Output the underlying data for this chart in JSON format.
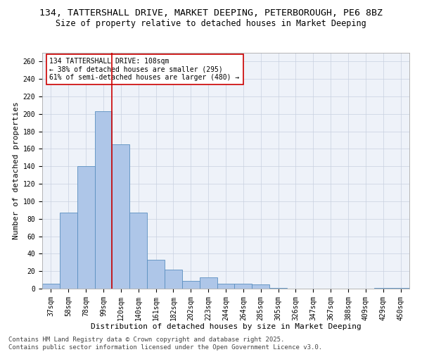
{
  "title1": "134, TATTERSHALL DRIVE, MARKET DEEPING, PETERBOROUGH, PE6 8BZ",
  "title2": "Size of property relative to detached houses in Market Deeping",
  "xlabel": "Distribution of detached houses by size in Market Deeping",
  "ylabel": "Number of detached properties",
  "categories": [
    "37sqm",
    "58sqm",
    "78sqm",
    "99sqm",
    "120sqm",
    "140sqm",
    "161sqm",
    "182sqm",
    "202sqm",
    "223sqm",
    "244sqm",
    "264sqm",
    "285sqm",
    "305sqm",
    "326sqm",
    "347sqm",
    "367sqm",
    "388sqm",
    "409sqm",
    "429sqm",
    "450sqm"
  ],
  "values": [
    6,
    87,
    140,
    203,
    165,
    87,
    33,
    22,
    9,
    13,
    6,
    6,
    5,
    1,
    0,
    0,
    0,
    0,
    0,
    1,
    1
  ],
  "bar_color": "#aec6e8",
  "bar_edgecolor": "#5a8fc0",
  "vline_x": 3.5,
  "vline_color": "#cc0000",
  "annotation_text": "134 TATTERSHALL DRIVE: 108sqm\n← 38% of detached houses are smaller (295)\n61% of semi-detached houses are larger (480) →",
  "annotation_box_color": "#ffffff",
  "annotation_box_edgecolor": "#cc0000",
  "ylim": [
    0,
    270
  ],
  "yticks": [
    0,
    20,
    40,
    60,
    80,
    100,
    120,
    140,
    160,
    180,
    200,
    220,
    240,
    260
  ],
  "background_color": "#eef2f9",
  "footer_text": "Contains HM Land Registry data © Crown copyright and database right 2025.\nContains public sector information licensed under the Open Government Licence v3.0.",
  "title1_fontsize": 9.5,
  "title2_fontsize": 8.5,
  "xlabel_fontsize": 8,
  "ylabel_fontsize": 8,
  "tick_fontsize": 7,
  "annotation_fontsize": 7,
  "footer_fontsize": 6.5
}
